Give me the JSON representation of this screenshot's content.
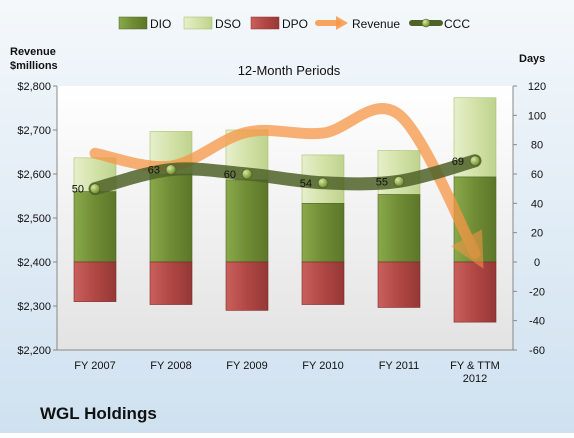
{
  "chart_data": {
    "type": "bar",
    "title": "12-Month Periods",
    "company": "WGL Holdings",
    "left_axis_label_line1": "Revenue",
    "left_axis_label_line2": "$millions",
    "right_axis_label": "Days",
    "categories": [
      "FY 2007",
      "FY 2008",
      "FY 2009",
      "FY 2010",
      "FY 2011",
      "FY & TTM 2012"
    ],
    "left_axis": {
      "ylim": [
        2200,
        2800
      ],
      "ticks": [
        "$2,200",
        "$2,300",
        "$2,400",
        "$2,500",
        "$2,600",
        "$2,700",
        "$2,800"
      ]
    },
    "right_axis": {
      "ylim": [
        -60,
        120
      ],
      "ticks": [
        "-60",
        "-40",
        "-20",
        "0",
        "20",
        "40",
        "60",
        "80",
        "100",
        "120"
      ]
    },
    "legend": [
      "DIO",
      "DSO",
      "DPO",
      "Revenue",
      "CCC"
    ],
    "legend_position": "top",
    "series": [
      {
        "name": "DIO",
        "axis": "right",
        "values": [
          48,
          60,
          56,
          40,
          46,
          58
        ]
      },
      {
        "name": "DSO",
        "axis": "right",
        "values": [
          23,
          29,
          34,
          33,
          30,
          54
        ]
      },
      {
        "name": "DPO",
        "axis": "right",
        "values": [
          -27,
          -29,
          -33,
          -29,
          -31,
          -41
        ]
      },
      {
        "name": "Revenue",
        "axis": "left",
        "values": [
          2647,
          2618,
          2695,
          2693,
          2735,
          2420
        ]
      },
      {
        "name": "CCC",
        "axis": "right",
        "values": [
          50,
          63,
          60,
          54,
          55,
          69
        ],
        "labels": [
          "50",
          "63",
          "60",
          "54",
          "55",
          "69"
        ]
      }
    ],
    "colors": {
      "DIO": "#77933c",
      "DSO": "#d7e4bd",
      "DPO": "#c0504d",
      "Revenue": "#f79646",
      "CCC": "#4f6228"
    },
    "grid": false
  }
}
